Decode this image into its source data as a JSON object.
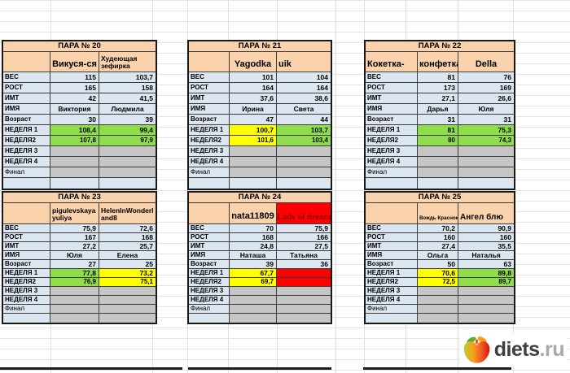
{
  "colors": {
    "peach": "#FAD2AC",
    "rowblue": "#DCE6F1",
    "gray": "#C6C6C6",
    "green": "#8FDD4A",
    "yellow": "#FFFF00",
    "red": "#FF0000",
    "darkred": "#8B0000"
  },
  "row_labels": [
    "ВЕС",
    "РОСТ",
    "ИМТ",
    "ИМЯ",
    "Возраст",
    "НЕДЕЛЯ 1",
    "НЕДЕЛЯ2",
    "НЕДЕЛЯ 3",
    "НЕДЕЛЯ 4",
    "Финал",
    ""
  ],
  "tables": [
    {
      "title": "ПАРА № 20",
      "label_header": "",
      "p1": "Викуся-ся",
      "p2": "Худеющая зефирка",
      "p2_bg": "peach",
      "rows": [
        {
          "v1": "115",
          "v2": "103,7",
          "bg1": "blue",
          "bg2": "blue"
        },
        {
          "v1": "165",
          "v2": "158",
          "bg1": "blue",
          "bg2": "blue"
        },
        {
          "v1": "42",
          "v2": "41,5",
          "bg1": "blue",
          "bg2": "blue"
        },
        {
          "v1": "Виктория",
          "v2": "Людмила",
          "bg1": "blue",
          "bg2": "blue"
        },
        {
          "v1": "30",
          "v2": "39",
          "bg1": "blue",
          "bg2": "blue"
        },
        {
          "v1": "108,4",
          "v2": "99,4",
          "bg1": "green",
          "bg2": "green"
        },
        {
          "v1": "107,8",
          "v2": "97,9",
          "bg1": "green",
          "bg2": "green"
        },
        {
          "v1": "",
          "v2": "",
          "bg1": "gray",
          "bg2": "gray"
        },
        {
          "v1": "",
          "v2": "",
          "bg1": "gray",
          "bg2": "gray"
        },
        {
          "v1": "",
          "v2": "",
          "bg1": "gray",
          "bg2": "gray"
        },
        {
          "v1": "",
          "v2": "",
          "bg1": "blue",
          "bg2": "blue"
        }
      ]
    },
    {
      "title": "ПАРА № 21",
      "label_header": "",
      "p1": "Yagodka",
      "p2": "uik",
      "p2_bg": "peach",
      "rows": [
        {
          "v1": "101",
          "v2": "104",
          "bg1": "blue",
          "bg2": "blue"
        },
        {
          "v1": "164",
          "v2": "164",
          "bg1": "blue",
          "bg2": "blue"
        },
        {
          "v1": "37,6",
          "v2": "38,6",
          "bg1": "blue",
          "bg2": "blue"
        },
        {
          "v1": "Ирина",
          "v2": "Света",
          "bg1": "blue",
          "bg2": "blue"
        },
        {
          "v1": "47",
          "v2": "44",
          "bg1": "blue",
          "bg2": "blue"
        },
        {
          "v1": "100,7",
          "v2": "103,7",
          "bg1": "yellow",
          "bg2": "green"
        },
        {
          "v1": "101,6",
          "v2": "103,4",
          "bg1": "yellow",
          "bg2": "green"
        },
        {
          "v1": "",
          "v2": "",
          "bg1": "gray",
          "bg2": "gray"
        },
        {
          "v1": "",
          "v2": "",
          "bg1": "gray",
          "bg2": "gray"
        },
        {
          "v1": "",
          "v2": "",
          "bg1": "gray",
          "bg2": "gray"
        },
        {
          "v1": "",
          "v2": "",
          "bg1": "blue",
          "bg2": "blue"
        }
      ]
    },
    {
      "title": "ПАРА № 22",
      "label_header": "Кокетка-",
      "p1": "конфетка",
      "p2": "Della",
      "p2_bg": "peach",
      "rows": [
        {
          "v1": "81",
          "v2": "76",
          "bg1": "blue",
          "bg2": "blue"
        },
        {
          "v1": "173",
          "v2": "169",
          "bg1": "blue",
          "bg2": "blue"
        },
        {
          "v1": "27,1",
          "v2": "26,6",
          "bg1": "blue",
          "bg2": "blue"
        },
        {
          "v1": "Дарья",
          "v2": "Юля",
          "bg1": "blue",
          "bg2": "blue"
        },
        {
          "v1": "31",
          "v2": "31",
          "bg1": "blue",
          "bg2": "blue"
        },
        {
          "v1": "81",
          "v2": "75,3",
          "bg1": "green",
          "bg2": "green"
        },
        {
          "v1": "80",
          "v2": "74,3",
          "bg1": "green",
          "bg2": "green"
        },
        {
          "v1": "",
          "v2": "",
          "bg1": "gray",
          "bg2": "gray"
        },
        {
          "v1": "",
          "v2": "",
          "bg1": "gray",
          "bg2": "gray"
        },
        {
          "v1": "",
          "v2": "",
          "bg1": "gray",
          "bg2": "gray"
        },
        {
          "v1": "",
          "v2": "",
          "bg1": "blue",
          "bg2": "blue"
        }
      ]
    },
    {
      "title": "ПАРА № 23",
      "label_header": "",
      "p1": "pigulevskaya yuliya",
      "p2": "HelenInWonderland8",
      "p2_bg": "peach",
      "rows": [
        {
          "v1": "75,9",
          "v2": "72,6",
          "bg1": "blue",
          "bg2": "blue"
        },
        {
          "v1": "167",
          "v2": "168",
          "bg1": "blue",
          "bg2": "blue"
        },
        {
          "v1": "27,2",
          "v2": "25,7",
          "bg1": "blue",
          "bg2": "blue"
        },
        {
          "v1": "Юля",
          "v2": "Елена",
          "bg1": "blue",
          "bg2": "blue"
        },
        {
          "v1": "27",
          "v2": "25",
          "bg1": "blue",
          "bg2": "blue"
        },
        {
          "v1": "77,8",
          "v2": "73,2",
          "bg1": "green",
          "bg2": "yellow"
        },
        {
          "v1": "76,9",
          "v2": "75,1",
          "bg1": "green",
          "bg2": "yellow"
        },
        {
          "v1": "",
          "v2": "",
          "bg1": "gray",
          "bg2": "gray"
        },
        {
          "v1": "",
          "v2": "",
          "bg1": "gray",
          "bg2": "gray"
        },
        {
          "v1": "",
          "v2": "",
          "bg1": "gray",
          "bg2": "gray"
        },
        {
          "v1": "",
          "v2": "",
          "bg1": "gray",
          "bg2": "gray"
        }
      ]
    },
    {
      "title": "ПАРА № 24",
      "label_header": "",
      "p1": "nata11809",
      "p2": "Lady of dream",
      "p2_bg": "red",
      "rows": [
        {
          "v1": "70",
          "v2": "75,9",
          "bg1": "blue",
          "bg2": "blue"
        },
        {
          "v1": "168",
          "v2": "166",
          "bg1": "blue",
          "bg2": "blue"
        },
        {
          "v1": "24,8",
          "v2": "27,5",
          "bg1": "blue",
          "bg2": "blue"
        },
        {
          "v1": "Наташа",
          "v2": "Татьяна",
          "bg1": "blue",
          "bg2": "blue"
        },
        {
          "v1": "39",
          "v2": "36",
          "bg1": "blue",
          "bg2": "blue"
        },
        {
          "v1": "67,7",
          "v2": "",
          "bg1": "yellow",
          "bg2": "red"
        },
        {
          "v1": "69,7",
          "v2": "",
          "bg1": "yellow",
          "bg2": "red"
        },
        {
          "v1": "",
          "v2": "",
          "bg1": "gray",
          "bg2": "gray"
        },
        {
          "v1": "",
          "v2": "",
          "bg1": "gray",
          "bg2": "gray"
        },
        {
          "v1": "",
          "v2": "",
          "bg1": "gray",
          "bg2": "gray"
        },
        {
          "v1": "",
          "v2": "",
          "bg1": "gray",
          "bg2": "gray"
        }
      ]
    },
    {
      "title": "ПАРА № 25",
      "label_header": "",
      "p1": "Вождь Краснокожи",
      "p2": "Ангел блю",
      "p2_bg": "peach",
      "rows": [
        {
          "v1": "70,2",
          "v2": "90,9",
          "bg1": "blue",
          "bg2": "blue"
        },
        {
          "v1": "160",
          "v2": "160",
          "bg1": "blue",
          "bg2": "blue"
        },
        {
          "v1": "27,4",
          "v2": "35,5",
          "bg1": "blue",
          "bg2": "blue"
        },
        {
          "v1": "Ольга",
          "v2": "Наталья",
          "bg1": "blue",
          "bg2": "blue"
        },
        {
          "v1": "50",
          "v2": "63",
          "bg1": "blue",
          "bg2": "blue"
        },
        {
          "v1": "70,6",
          "v2": "89,8",
          "bg1": "yellow",
          "bg2": "green"
        },
        {
          "v1": "72,5",
          "v2": "89,7",
          "bg1": "yellow",
          "bg2": "green"
        },
        {
          "v1": "",
          "v2": "",
          "bg1": "gray",
          "bg2": "gray"
        },
        {
          "v1": "",
          "v2": "",
          "bg1": "gray",
          "bg2": "gray"
        },
        {
          "v1": "",
          "v2": "",
          "bg1": "gray",
          "bg2": "gray"
        },
        {
          "v1": "",
          "v2": "",
          "bg1": "gray",
          "bg2": "gray"
        }
      ]
    }
  ],
  "logo": {
    "brand": "diets",
    "tld": ".ru"
  }
}
